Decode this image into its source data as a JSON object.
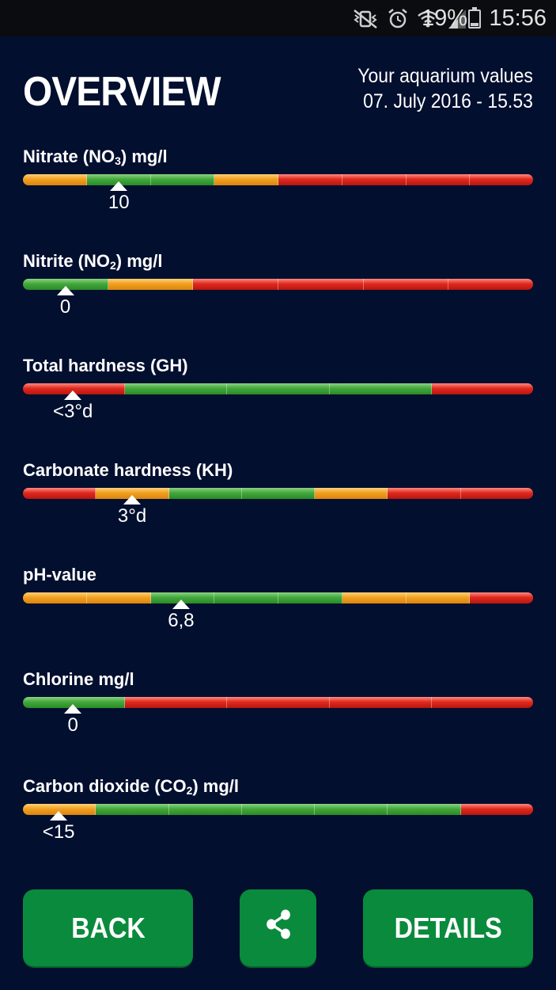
{
  "status_bar": {
    "battery_percent": "19%",
    "time": "15:56",
    "icons": [
      "vibrate-mute-icon",
      "alarm-icon",
      "wifi-icon",
      "signal-icon",
      "battery-icon"
    ]
  },
  "header": {
    "title": "OVERVIEW",
    "subtitle_line1": "Your aquarium values",
    "subtitle_line2": "07. July 2016 - 15.53"
  },
  "parameters": [
    {
      "label": "Nitrate (NO",
      "sub": "3",
      "suffix": ") mg/l",
      "value": "10",
      "marker_fraction": 0.188,
      "segments": [
        "o",
        "g",
        "g",
        "o",
        "r",
        "r",
        "r",
        "r"
      ]
    },
    {
      "label": "Nitrite (NO",
      "sub": "2",
      "suffix": ") mg/l",
      "value": "0",
      "marker_fraction": 0.083,
      "segments": [
        "g",
        "o",
        "r",
        "r",
        "r",
        "r"
      ]
    },
    {
      "label": "Total hardness (GH)",
      "sub": "",
      "suffix": "",
      "value": "<3°d",
      "marker_fraction": 0.098,
      "segments": [
        "r",
        "g",
        "g",
        "g",
        "r"
      ]
    },
    {
      "label": "Carbonate hardness (KH)",
      "sub": "",
      "suffix": "",
      "value": "3°d",
      "marker_fraction": 0.214,
      "segments": [
        "r",
        "o",
        "g",
        "g",
        "o",
        "r",
        "r"
      ]
    },
    {
      "label": "pH-value",
      "sub": "",
      "suffix": "",
      "value": "6,8",
      "marker_fraction": 0.31,
      "segments": [
        "o",
        "o",
        "g",
        "g",
        "g",
        "o",
        "o",
        "r"
      ]
    },
    {
      "label": "Chlorine mg/l",
      "sub": "",
      "suffix": "",
      "value": "0",
      "marker_fraction": 0.098,
      "segments": [
        "g",
        "r",
        "r",
        "r",
        "r"
      ]
    },
    {
      "label": "Carbon dioxide (CO",
      "sub": "2",
      "suffix": ") mg/l",
      "value": "<15",
      "marker_fraction": 0.07,
      "segments": [
        "o",
        "g",
        "g",
        "g",
        "g",
        "g",
        "r"
      ]
    }
  ],
  "buttons": {
    "back_label": "BACK",
    "share_icon": "share-icon",
    "details_label": "DETAILS"
  },
  "colors": {
    "background": "#030f2f",
    "button_green": "#0a8a3c",
    "good": "#43a83c",
    "warning": "#f2a020",
    "bad": "#e02a1e"
  }
}
